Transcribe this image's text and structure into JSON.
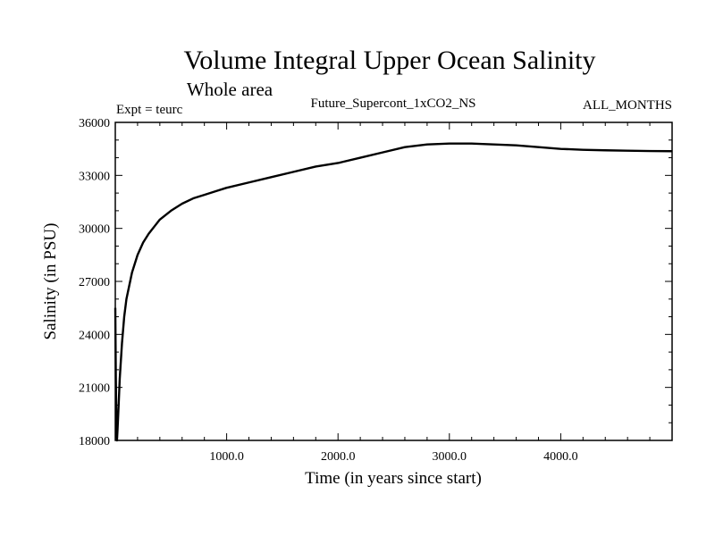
{
  "chart_data": {
    "type": "line",
    "title": "Volume Integral Upper Ocean Salinity",
    "subtitle": "Whole area",
    "left_string": "Expt = teurc",
    "center_string": "Future_Supercont_1xCO2_NS",
    "right_string": "ALL_MONTHS",
    "xlabel": "Time (in years since start)",
    "ylabel": "Salinity (in PSU)",
    "xlim": [
      0,
      5000
    ],
    "ylim": [
      18000,
      36000
    ],
    "x_tick_values": [
      1000,
      2000,
      3000,
      4000
    ],
    "x_tick_labels": [
      "1000.0",
      "2000.0",
      "3000.0",
      "4000.0"
    ],
    "y_tick_values": [
      18000,
      21000,
      24000,
      27000,
      30000,
      33000,
      36000
    ],
    "y_tick_labels": [
      "18000",
      "21000",
      "24000",
      "27000",
      "30000",
      "33000",
      "36000"
    ],
    "grid": false,
    "series": [
      {
        "x": [
          0,
          5,
          10,
          15,
          20,
          30,
          40,
          60,
          80,
          100,
          150,
          200,
          250,
          300,
          350,
          400,
          500,
          600,
          700,
          800,
          900,
          1000,
          1200,
          1400,
          1600,
          1800,
          2000,
          2200,
          2400,
          2600,
          2800,
          3000,
          3200,
          3400,
          3600,
          3800,
          4000,
          4200,
          4400,
          4600,
          4800,
          5000
        ],
        "y": [
          25500,
          21500,
          18700,
          18000,
          18600,
          20000,
          21500,
          23500,
          25000,
          26000,
          27500,
          28500,
          29200,
          29700,
          30100,
          30500,
          31000,
          31400,
          31700,
          31900,
          32100,
          32300,
          32600,
          32900,
          33200,
          33500,
          33700,
          34000,
          34300,
          34600,
          34750,
          34800,
          34800,
          34750,
          34700,
          34600,
          34500,
          34450,
          34420,
          34400,
          34380,
          34370
        ]
      }
    ]
  }
}
